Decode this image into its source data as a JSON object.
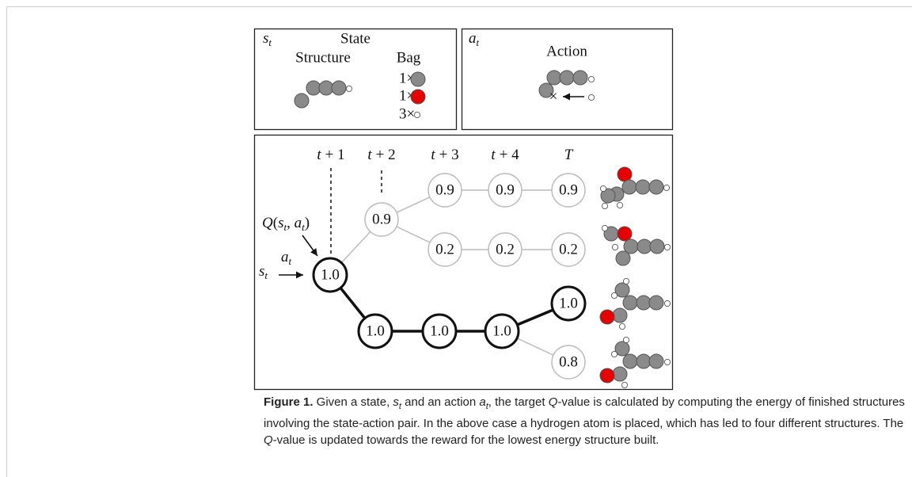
{
  "state_panel": {
    "symbol": [
      "s",
      "t"
    ],
    "title": "State",
    "structure_label": "Structure",
    "bag_label": "Bag",
    "bag": [
      "1×",
      "1×",
      "3×"
    ]
  },
  "action_panel": {
    "symbol": [
      "a",
      "t"
    ],
    "title": "Action",
    "cross": "×"
  },
  "tree": {
    "time_labels": [
      [
        "t",
        "+ 1"
      ],
      [
        "t",
        "+ 2"
      ],
      [
        "t",
        "+ 3"
      ],
      [
        "t",
        "+ 4"
      ],
      [
        "T"
      ]
    ],
    "q_label": [
      "Q",
      "(",
      "s",
      "t",
      ", ",
      "a",
      "t",
      ")"
    ],
    "input_action": [
      "a",
      "t"
    ],
    "input_state": [
      "s",
      "t"
    ],
    "nodes": [
      {
        "label": "1.0"
      },
      {
        "label": "0.9"
      },
      {
        "label": "0.9"
      },
      {
        "label": "0.9"
      },
      {
        "label": "0.9"
      },
      {
        "label": "0.2"
      },
      {
        "label": "0.2"
      },
      {
        "label": "0.2"
      },
      {
        "label": "1.0"
      },
      {
        "label": "1.0"
      },
      {
        "label": "1.0"
      },
      {
        "label": "1.0"
      },
      {
        "label": "0.8"
      }
    ]
  },
  "caption": {
    "label": "Figure 1.",
    "lines": [
      [
        " Given a state, ",
        "s",
        "t",
        " and an action ",
        "a",
        "t",
        ", the target ",
        "Q",
        "-value is calculated by computing the energy of finished structures"
      ],
      [
        "involving the state-action pair. In the above case a hydrogen atom is placed, which has led to four different structures. The"
      ],
      [
        "Q",
        "-value is updated towards the reward for the lowest energy structure built."
      ]
    ]
  }
}
